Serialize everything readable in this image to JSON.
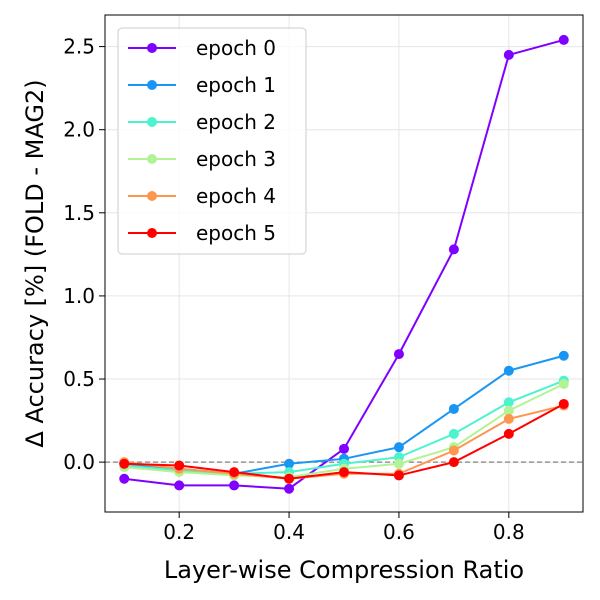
{
  "chart_data": {
    "type": "line",
    "title": "",
    "xlabel": "Layer-wise Compression Ratio",
    "ylabel": "Δ Accuracy [%] (FOLD - MAG2)",
    "xlim": [
      0.065,
      0.935
    ],
    "ylim": [
      -0.3,
      2.69
    ],
    "xticks": [
      0.2,
      0.4,
      0.6,
      0.8
    ],
    "xtick_labels": [
      "0.2",
      "0.4",
      "0.6",
      "0.8"
    ],
    "yticks": [
      0.0,
      0.5,
      1.0,
      1.5,
      2.0,
      2.5
    ],
    "ytick_labels": [
      "0.0",
      "0.5",
      "1.0",
      "1.5",
      "2.0",
      "2.5"
    ],
    "grid": true,
    "reference_line": {
      "y": 0.0,
      "style": "dashed",
      "color": "#808080"
    },
    "legend_position": "top-left",
    "x": [
      0.1,
      0.2,
      0.3,
      0.4,
      0.5,
      0.6,
      0.7,
      0.8,
      0.9
    ],
    "series": [
      {
        "name": "epoch 0",
        "color": "#8000ff",
        "values": [
          -0.1,
          -0.14,
          -0.14,
          -0.16,
          0.08,
          0.65,
          1.28,
          2.45,
          2.54
        ]
      },
      {
        "name": "epoch 1",
        "color": "#1996f3",
        "values": [
          -0.01,
          -0.04,
          -0.07,
          -0.01,
          0.02,
          0.09,
          0.32,
          0.55,
          0.64
        ]
      },
      {
        "name": "epoch 2",
        "color": "#4df3ce",
        "values": [
          -0.02,
          -0.05,
          -0.07,
          -0.06,
          -0.01,
          0.03,
          0.17,
          0.36,
          0.49
        ]
      },
      {
        "name": "epoch 3",
        "color": "#b2f396",
        "values": [
          -0.03,
          -0.06,
          -0.08,
          -0.09,
          -0.04,
          -0.01,
          0.09,
          0.31,
          0.47
        ]
      },
      {
        "name": "epoch 4",
        "color": "#ff964f",
        "values": [
          0.0,
          -0.04,
          -0.07,
          -0.1,
          -0.07,
          -0.07,
          0.07,
          0.26,
          0.34
        ]
      },
      {
        "name": "epoch 5",
        "color": "#ff0000",
        "values": [
          -0.01,
          -0.02,
          -0.06,
          -0.1,
          -0.06,
          -0.08,
          0.0,
          0.17,
          0.35
        ]
      }
    ]
  }
}
